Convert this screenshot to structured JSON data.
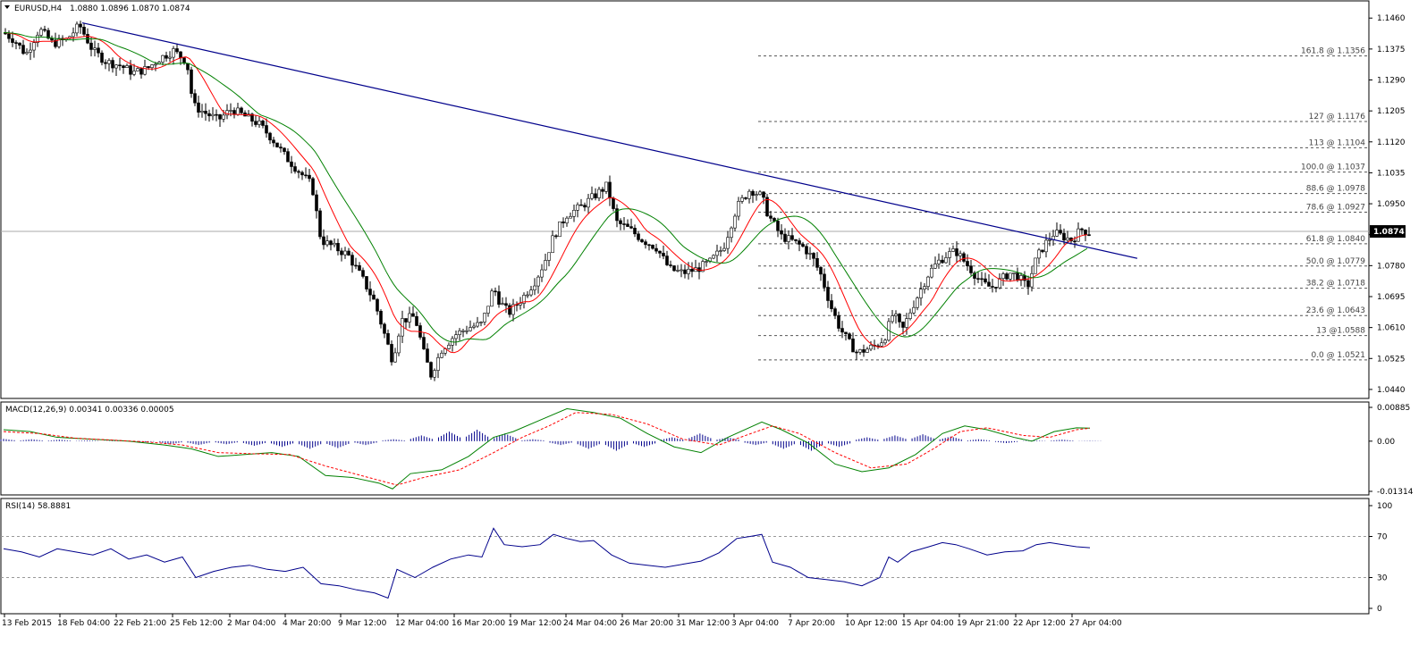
{
  "header": {
    "symbol": "EURUSD,H4",
    "ohlc": "1.0880 1.0896 1.0870 1.0874"
  },
  "macd_header": "MACD(12,26,9) 0.00341 0.00336 0.00005",
  "rsi_header": "RSI(14) 58.8881",
  "current_price": "1.0874",
  "chart_data": [
    {
      "type": "candlestick",
      "title": "EURUSD,H4 1.0880 1.0896 1.0870 1.0874",
      "y_ticks": [
        "1.1460",
        "1.1375",
        "1.1290",
        "1.1205",
        "1.1120",
        "1.1035",
        "1.0950",
        "1.0865",
        "1.0780",
        "1.0695",
        "1.0610",
        "1.0525",
        "1.0440"
      ],
      "ylim": [
        1.043,
        1.149
      ],
      "x_ticks": [
        "13 Feb 2015",
        "18 Feb 04:00",
        "22 Feb 21:00",
        "25 Feb 12:00",
        "2 Mar 04:00",
        "4 Mar 20:00",
        "9 Mar 12:00",
        "12 Mar 04:00",
        "16 Mar 20:00",
        "19 Mar 12:00",
        "24 Mar 04:00",
        "26 Mar 20:00",
        "31 Mar 12:00",
        "3 Apr 04:00",
        "7 Apr 20:00",
        "10 Apr 12:00",
        "15 Apr 04:00",
        "19 Apr 21:00",
        "22 Apr 12:00",
        "27 Apr 04:00"
      ],
      "current_price": 1.0874,
      "close_path": [
        [
          0,
          1.142
        ],
        [
          12,
          1.14
        ],
        [
          25,
          1.136
        ],
        [
          40,
          1.143
        ],
        [
          55,
          1.139
        ],
        [
          70,
          1.14
        ],
        [
          85,
          1.144
        ],
        [
          100,
          1.137
        ],
        [
          115,
          1.134
        ],
        [
          130,
          1.133
        ],
        [
          145,
          1.131
        ],
        [
          160,
          1.132
        ],
        [
          175,
          1.135
        ],
        [
          190,
          1.137
        ],
        [
          205,
          1.134
        ],
        [
          212,
          1.122
        ],
        [
          225,
          1.12
        ],
        [
          240,
          1.118
        ],
        [
          255,
          1.121
        ],
        [
          270,
          1.119
        ],
        [
          285,
          1.117
        ],
        [
          300,
          1.113
        ],
        [
          315,
          1.108
        ],
        [
          330,
          1.104
        ],
        [
          345,
          1.1
        ],
        [
          355,
          1.085
        ],
        [
          370,
          1.083
        ],
        [
          385,
          1.081
        ],
        [
          400,
          1.075
        ],
        [
          415,
          1.068
        ],
        [
          425,
          1.06
        ],
        [
          435,
          1.052
        ],
        [
          445,
          1.063
        ],
        [
          460,
          1.064
        ],
        [
          470,
          1.054
        ],
        [
          478,
          1.048
        ],
        [
          490,
          1.055
        ],
        [
          505,
          1.059
        ],
        [
          520,
          1.061
        ],
        [
          535,
          1.062
        ],
        [
          548,
          1.072
        ],
        [
          555,
          1.068
        ],
        [
          565,
          1.065
        ],
        [
          580,
          1.069
        ],
        [
          595,
          1.074
        ],
        [
          605,
          1.079
        ],
        [
          615,
          1.086
        ],
        [
          630,
          1.092
        ],
        [
          645,
          1.094
        ],
        [
          660,
          1.097
        ],
        [
          675,
          1.1
        ],
        [
          685,
          1.09
        ],
        [
          700,
          1.088
        ],
        [
          715,
          1.085
        ],
        [
          730,
          1.083
        ],
        [
          745,
          1.077
        ],
        [
          760,
          1.076
        ],
        [
          775,
          1.077
        ],
        [
          790,
          1.079
        ],
        [
          805,
          1.083
        ],
        [
          820,
          1.094
        ],
        [
          835,
          1.099
        ],
        [
          848,
          1.097
        ],
        [
          855,
          1.092
        ],
        [
          870,
          1.086
        ],
        [
          880,
          1.085
        ],
        [
          895,
          1.083
        ],
        [
          905,
          1.08
        ],
        [
          915,
          1.075
        ],
        [
          925,
          1.067
        ],
        [
          935,
          1.061
        ],
        [
          945,
          1.057
        ],
        [
          955,
          1.054
        ],
        [
          965,
          1.055
        ],
        [
          975,
          1.056
        ],
        [
          985,
          1.058
        ],
        [
          995,
          1.065
        ],
        [
          1005,
          1.06
        ],
        [
          1015,
          1.066
        ],
        [
          1025,
          1.071
        ],
        [
          1035,
          1.076
        ],
        [
          1045,
          1.079
        ],
        [
          1055,
          1.081
        ],
        [
          1065,
          1.082
        ],
        [
          1075,
          1.079
        ],
        [
          1085,
          1.076
        ],
        [
          1095,
          1.073
        ],
        [
          1105,
          1.072
        ],
        [
          1115,
          1.074
        ],
        [
          1125,
          1.076
        ],
        [
          1135,
          1.075
        ],
        [
          1145,
          1.072
        ],
        [
          1155,
          1.08
        ],
        [
          1165,
          1.084
        ],
        [
          1175,
          1.087
        ],
        [
          1185,
          1.086
        ],
        [
          1195,
          1.085
        ],
        [
          1205,
          1.088
        ],
        [
          1215,
          1.087
        ]
      ],
      "fibonacci": [
        {
          "label": "161.8 @ 1.1356",
          "price": 1.1356
        },
        {
          "label": "127 @ 1.1176",
          "price": 1.1176
        },
        {
          "label": "113 @ 1.1104",
          "price": 1.1104
        },
        {
          "label": "100.0 @ 1.1037",
          "price": 1.1037
        },
        {
          "label": "88.6 @ 1.0978",
          "price": 1.0978
        },
        {
          "label": "78.6 @ 1.0927",
          "price": 1.0927
        },
        {
          "label": "61.8 @ 1.0840",
          "price": 1.084
        },
        {
          "label": "50.0 @ 1.0779",
          "price": 1.0779
        },
        {
          "label": "38.2 @ 1.0718",
          "price": 1.0718
        },
        {
          "label": "23.6 @ 1.0643",
          "price": 1.0643
        },
        {
          "label": "13 @1.0588",
          "price": 1.0588
        },
        {
          "label": "0.0 @ 1.0521",
          "price": 1.0521
        }
      ],
      "trendline": {
        "x1": 88,
        "y1": 1.1447,
        "x2": 1268,
        "y2": 1.08
      },
      "colors": {
        "trendline": "#00008b",
        "ma_fast": "#ff0000",
        "ma_slow": "#008000",
        "candle": "#000000",
        "grid_ref": "#aaaaaa"
      }
    },
    {
      "type": "line",
      "title": "MACD(12,26,9) 0.00341 0.00336 0.00005",
      "y_ticks": [
        "0.00885",
        "0.00",
        "-0.01314"
      ],
      "ylim": [
        -0.01314,
        0.00885
      ],
      "series": [
        {
          "color": "#008000",
          "values": [
            [
              0,
              0.003
            ],
            [
              30,
              0.0025
            ],
            [
              60,
              0.001
            ],
            [
              100,
              0.0005
            ],
            [
              140,
              0.0
            ],
            [
              180,
              -0.001
            ],
            [
              210,
              -0.002
            ],
            [
              240,
              -0.004
            ],
            [
              270,
              -0.0035
            ],
            [
              300,
              -0.003
            ],
            [
              330,
              -0.004
            ],
            [
              360,
              -0.009
            ],
            [
              390,
              -0.0095
            ],
            [
              420,
              -0.011
            ],
            [
              435,
              -0.0125
            ],
            [
              455,
              -0.0085
            ],
            [
              490,
              -0.0075
            ],
            [
              520,
              -0.004
            ],
            [
              548,
              0.001
            ],
            [
              570,
              0.0025
            ],
            [
              600,
              0.0055
            ],
            [
              630,
              0.0085
            ],
            [
              660,
              0.0075
            ],
            [
              690,
              0.006
            ],
            [
              720,
              0.002
            ],
            [
              750,
              -0.0015
            ],
            [
              780,
              -0.003
            ],
            [
              810,
              0.001
            ],
            [
              848,
              0.005
            ],
            [
              870,
              0.003
            ],
            [
              900,
              -0.0005
            ],
            [
              930,
              -0.006
            ],
            [
              960,
              -0.008
            ],
            [
              990,
              -0.007
            ],
            [
              1020,
              -0.0035
            ],
            [
              1050,
              0.002
            ],
            [
              1075,
              0.004
            ],
            [
              1100,
              0.003
            ],
            [
              1130,
              0.001
            ],
            [
              1150,
              0.0
            ],
            [
              1175,
              0.0025
            ],
            [
              1200,
              0.0035
            ],
            [
              1215,
              0.0034
            ]
          ]
        },
        {
          "color": "#ff0000",
          "values": [
            [
              0,
              0.0025
            ],
            [
              40,
              0.002
            ],
            [
              80,
              0.0008
            ],
            [
              120,
              0.0003
            ],
            [
              160,
              -0.0002
            ],
            [
              200,
              -0.001
            ],
            [
              240,
              -0.003
            ],
            [
              280,
              -0.0033
            ],
            [
              320,
              -0.0035
            ],
            [
              360,
              -0.0065
            ],
            [
              400,
              -0.009
            ],
            [
              440,
              -0.0115
            ],
            [
              470,
              -0.0095
            ],
            [
              510,
              -0.0075
            ],
            [
              548,
              -0.003
            ],
            [
              580,
              0.001
            ],
            [
              610,
              0.004
            ],
            [
              640,
              0.0075
            ],
            [
              680,
              0.007
            ],
            [
              720,
              0.0045
            ],
            [
              760,
              0.0005
            ],
            [
              800,
              -0.001
            ],
            [
              830,
              0.0015
            ],
            [
              860,
              0.004
            ],
            [
              890,
              0.002
            ],
            [
              930,
              -0.003
            ],
            [
              970,
              -0.007
            ],
            [
              1010,
              -0.006
            ],
            [
              1040,
              -0.002
            ],
            [
              1070,
              0.0025
            ],
            [
              1100,
              0.0035
            ],
            [
              1140,
              0.0015
            ],
            [
              1170,
              0.001
            ],
            [
              1200,
              0.003
            ],
            [
              1215,
              0.0034
            ]
          ]
        }
      ],
      "histogram": [
        0.0006,
        0.0005,
        0.0004,
        0.0002,
        0.0001,
        -0.0003,
        -0.0008,
        -0.001,
        -0.0008,
        -0.0012,
        -0.0015,
        -0.002,
        -0.0018,
        -0.001,
        0.0005,
        0.0015,
        0.0025,
        0.003,
        0.002,
        0.0005,
        -0.001,
        -0.002,
        -0.0025,
        -0.0015,
        0.001,
        0.002,
        0.001,
        -0.001,
        -0.002,
        -0.0025,
        -0.0015,
        0.001,
        0.0015,
        0.0018,
        0.0012,
        0.0005,
        -0.0005,
        0.0002,
        0.0004,
        0.0001
      ]
    },
    {
      "type": "line",
      "title": "RSI(14) 58.8881",
      "y_ticks": [
        "100",
        "70",
        "30",
        "0"
      ],
      "ylim": [
        0,
        100
      ],
      "series": [
        {
          "color": "#00008b",
          "values": [
            [
              0,
              58
            ],
            [
              20,
              55
            ],
            [
              40,
              50
            ],
            [
              60,
              58
            ],
            [
              80,
              55
            ],
            [
              100,
              52
            ],
            [
              120,
              58
            ],
            [
              140,
              48
            ],
            [
              160,
              52
            ],
            [
              180,
              45
            ],
            [
              200,
              50
            ],
            [
              215,
              30
            ],
            [
              235,
              36
            ],
            [
              255,
              40
            ],
            [
              275,
              42
            ],
            [
              295,
              38
            ],
            [
              315,
              36
            ],
            [
              335,
              40
            ],
            [
              355,
              24
            ],
            [
              375,
              22
            ],
            [
              395,
              18
            ],
            [
              415,
              15
            ],
            [
              430,
              10
            ],
            [
              440,
              38
            ],
            [
              460,
              30
            ],
            [
              480,
              40
            ],
            [
              500,
              48
            ],
            [
              520,
              52
            ],
            [
              535,
              50
            ],
            [
              548,
              78
            ],
            [
              560,
              62
            ],
            [
              580,
              60
            ],
            [
              600,
              62
            ],
            [
              615,
              72
            ],
            [
              630,
              68
            ],
            [
              645,
              65
            ],
            [
              660,
              66
            ],
            [
              680,
              52
            ],
            [
              700,
              44
            ],
            [
              720,
              42
            ],
            [
              740,
              40
            ],
            [
              760,
              43
            ],
            [
              780,
              46
            ],
            [
              800,
              54
            ],
            [
              820,
              68
            ],
            [
              835,
              70
            ],
            [
              848,
              72
            ],
            [
              860,
              45
            ],
            [
              880,
              40
            ],
            [
              900,
              30
            ],
            [
              920,
              28
            ],
            [
              940,
              26
            ],
            [
              960,
              22
            ],
            [
              980,
              30
            ],
            [
              990,
              50
            ],
            [
              1000,
              45
            ],
            [
              1015,
              55
            ],
            [
              1035,
              60
            ],
            [
              1050,
              64
            ],
            [
              1065,
              62
            ],
            [
              1080,
              58
            ],
            [
              1100,
              52
            ],
            [
              1120,
              55
            ],
            [
              1140,
              56
            ],
            [
              1155,
              62
            ],
            [
              1170,
              64
            ],
            [
              1185,
              62
            ],
            [
              1200,
              60
            ],
            [
              1215,
              59
            ]
          ]
        }
      ],
      "levels": [
        70,
        30
      ]
    }
  ]
}
